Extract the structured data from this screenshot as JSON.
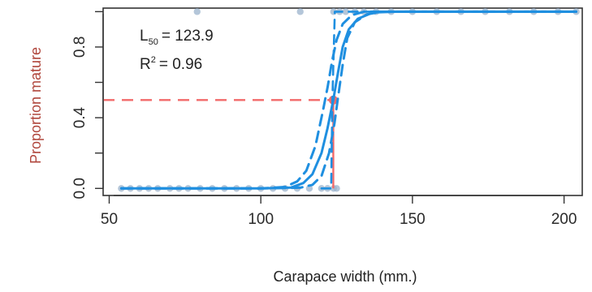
{
  "chart_data": {
    "type": "line",
    "xlabel": "Carapace width (mm.)",
    "ylabel": "Proportion mature",
    "xlim": [
      48,
      206
    ],
    "ylim": [
      -0.04,
      1.02
    ],
    "x_ticks": [
      50,
      100,
      150,
      200
    ],
    "x_tick_labels": [
      "50",
      "100",
      "150",
      "200"
    ],
    "y_ticks": [
      0.0,
      0.4,
      0.8
    ],
    "y_tick_labels": [
      "0.0",
      "0.4",
      "0.8"
    ],
    "y_minor_ticks": [
      0.2,
      0.6,
      1.0
    ],
    "grid": false,
    "annotation": {
      "l50_prefix": "L",
      "l50_subscript": "50",
      "l50_value": "= 123.9",
      "r2_prefix": "R",
      "r2_superscript": "2",
      "r2_value": "= 0.96"
    },
    "l50": 123.9,
    "observations": {
      "immature_x": [
        54,
        57,
        60,
        63,
        66,
        70,
        73,
        76,
        80,
        84,
        88,
        92,
        96,
        100,
        104,
        108,
        112,
        116,
        120,
        122,
        124,
        125
      ],
      "mature_x": [
        79,
        113,
        124,
        126,
        128,
        131,
        134,
        138,
        143,
        150,
        158,
        166,
        174,
        182,
        190,
        198,
        204
      ]
    },
    "series": [
      {
        "role": "fit",
        "values": [
          [
            54,
            0
          ],
          [
            100,
            0
          ],
          [
            110,
            0.005
          ],
          [
            114,
            0.03
          ],
          [
            117,
            0.08
          ],
          [
            120,
            0.2
          ],
          [
            122,
            0.34
          ],
          [
            123.9,
            0.5
          ],
          [
            125.5,
            0.66
          ],
          [
            127,
            0.8
          ],
          [
            129,
            0.9
          ],
          [
            132,
            0.96
          ],
          [
            137,
            0.995
          ],
          [
            145,
            1
          ],
          [
            204,
            1
          ]
        ]
      },
      {
        "role": "ci-lower",
        "values": [
          [
            54,
            0
          ],
          [
            100,
            0
          ],
          [
            113,
            0.004
          ],
          [
            117,
            0.02
          ],
          [
            120,
            0.07
          ],
          [
            122.5,
            0.2
          ],
          [
            124.3,
            0.37
          ],
          [
            125.5,
            0.52
          ],
          [
            127,
            0.7
          ],
          [
            128.5,
            0.85
          ],
          [
            131,
            0.94
          ],
          [
            135,
            0.985
          ],
          [
            140,
            1
          ],
          [
            204,
            1
          ]
        ]
      },
      {
        "role": "ci-upper",
        "values": [
          [
            54,
            0
          ],
          [
            100,
            0
          ],
          [
            108,
            0.008
          ],
          [
            112,
            0.04
          ],
          [
            115,
            0.1
          ],
          [
            118,
            0.24
          ],
          [
            120.5,
            0.44
          ],
          [
            122,
            0.57
          ],
          [
            123.5,
            0.72
          ],
          [
            125,
            0.84
          ],
          [
            127,
            0.93
          ],
          [
            130,
            0.98
          ],
          [
            134,
            1
          ],
          [
            204,
            1
          ]
        ]
      },
      {
        "role": "step",
        "values": [
          [
            120,
            0
          ],
          [
            123.2,
            0
          ],
          [
            123.6,
            0.5
          ],
          [
            124.4,
            1.0
          ],
          [
            127,
            1.0
          ],
          [
            204,
            1
          ]
        ]
      }
    ],
    "colors": {
      "fit": "#1f8fe0",
      "points": "#9bb3cc",
      "reference": "#f26a6a",
      "ylabel": "#b0463c",
      "axis": "#333333",
      "text": "#222222"
    }
  }
}
